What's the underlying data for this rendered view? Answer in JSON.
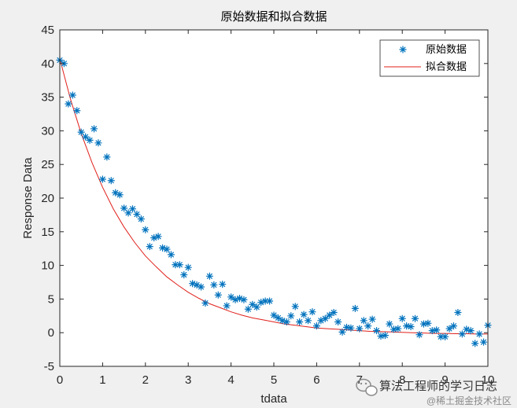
{
  "chart_data": {
    "type": "scatter",
    "title": "原始数据和拟合数据",
    "xlabel": "tdata",
    "ylabel": "Response Data",
    "xlim": [
      0,
      10
    ],
    "ylim": [
      -5,
      45
    ],
    "xticks": [
      0,
      1,
      2,
      3,
      4,
      5,
      6,
      7,
      8,
      9,
      10
    ],
    "yticks": [
      -5,
      0,
      5,
      10,
      15,
      20,
      25,
      30,
      35,
      40,
      45
    ],
    "grid": false,
    "legend_position": "top-right",
    "series": [
      {
        "name": "原始数据",
        "kind": "markers",
        "marker": "asterisk",
        "color": "#0072BD",
        "x": [
          0.0,
          0.1,
          0.2,
          0.3,
          0.4,
          0.5,
          0.6,
          0.7,
          0.8,
          0.9,
          1.0,
          1.1,
          1.2,
          1.3,
          1.4,
          1.5,
          1.6,
          1.7,
          1.8,
          1.9,
          2.0,
          2.1,
          2.2,
          2.3,
          2.4,
          2.5,
          2.6,
          2.7,
          2.8,
          2.9,
          3.0,
          3.1,
          3.2,
          3.3,
          3.4,
          3.5,
          3.6,
          3.7,
          3.8,
          3.9,
          4.0,
          4.1,
          4.2,
          4.3,
          4.4,
          4.5,
          4.6,
          4.7,
          4.8,
          4.9,
          5.0,
          5.1,
          5.2,
          5.3,
          5.4,
          5.5,
          5.6,
          5.7,
          5.8,
          5.9,
          6.0,
          6.1,
          6.2,
          6.3,
          6.4,
          6.5,
          6.6,
          6.7,
          6.8,
          6.9,
          7.0,
          7.1,
          7.2,
          7.3,
          7.4,
          7.5,
          7.6,
          7.7,
          7.8,
          7.9,
          8.0,
          8.1,
          8.2,
          8.3,
          8.4,
          8.5,
          8.6,
          8.7,
          8.8,
          8.9,
          9.0,
          9.1,
          9.2,
          9.3,
          9.4,
          9.5,
          9.6,
          9.7,
          9.8,
          9.9,
          10.0
        ],
        "y": [
          40.5,
          40.0,
          34.0,
          35.3,
          33.0,
          29.8,
          29.1,
          28.6,
          30.3,
          28.2,
          22.8,
          26.1,
          22.6,
          20.8,
          20.5,
          18.5,
          17.8,
          18.4,
          17.6,
          16.9,
          15.3,
          12.8,
          14.1,
          14.3,
          12.6,
          12.4,
          11.6,
          10.1,
          10.1,
          8.6,
          9.7,
          7.3,
          7.1,
          6.8,
          4.4,
          8.4,
          7.1,
          5.6,
          7.2,
          4.0,
          5.3,
          4.9,
          5.1,
          4.9,
          3.5,
          4.2,
          3.8,
          4.5,
          4.7,
          4.7,
          2.6,
          2.2,
          1.8,
          1.6,
          2.5,
          3.9,
          1.6,
          2.7,
          1.8,
          3.1,
          1.0,
          1.8,
          2.1,
          2.6,
          3.0,
          1.6,
          0.1,
          0.8,
          0.7,
          3.6,
          0.6,
          1.8,
          1.0,
          2.0,
          0.3,
          -0.5,
          -0.4,
          1.3,
          0.5,
          0.6,
          2.1,
          1.0,
          0.9,
          2.1,
          -0.3,
          1.3,
          1.4,
          0.3,
          0.4,
          -0.6,
          -0.6,
          0.6,
          1.0,
          3.0,
          -0.2,
          0.5,
          0.3,
          -1.6,
          -0.2,
          -1.4,
          1.1
        ]
      },
      {
        "name": "拟合数据",
        "kind": "line",
        "color": "#E0201B",
        "x": [
          0.0,
          0.25,
          0.5,
          0.75,
          1.0,
          1.25,
          1.5,
          1.75,
          2.0,
          2.25,
          2.5,
          2.75,
          3.0,
          3.25,
          3.5,
          3.75,
          4.0,
          4.25,
          4.5,
          4.75,
          5.0,
          5.25,
          5.5,
          5.75,
          6.0,
          6.25,
          6.5,
          6.75,
          7.0,
          7.25,
          7.5,
          7.75,
          8.0,
          8.25,
          8.5,
          8.75,
          9.0,
          9.25,
          9.5,
          9.75,
          10.0
        ],
        "y": [
          40.7,
          34.7,
          29.6,
          25.3,
          21.6,
          18.4,
          15.7,
          13.4,
          11.4,
          9.8,
          8.3,
          7.1,
          6.0,
          5.1,
          4.3,
          3.7,
          3.1,
          2.6,
          2.2,
          1.9,
          1.6,
          1.3,
          1.1,
          0.9,
          0.7,
          0.6,
          0.5,
          0.4,
          0.3,
          0.2,
          0.15,
          0.1,
          0.05,
          0.0,
          -0.05,
          -0.1,
          -0.1,
          -0.15,
          -0.15,
          -0.2,
          -0.2
        ]
      }
    ]
  },
  "watermark": {
    "wechat_text": "算法工程师的学习日志",
    "juejin_text": "@稀土掘金技术社区"
  }
}
